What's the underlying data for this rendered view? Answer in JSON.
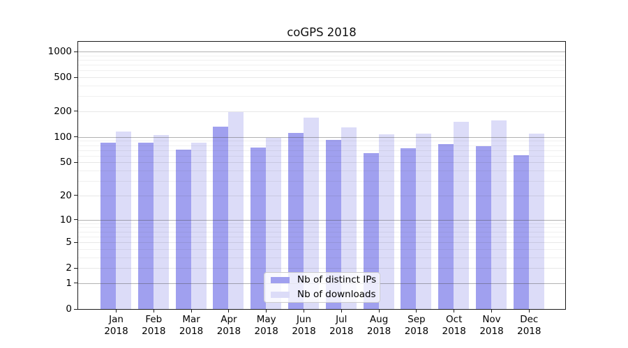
{
  "title": "coGPS 2018",
  "chart_data": {
    "type": "bar",
    "title": "coGPS 2018",
    "categories": [
      "Jan 2018",
      "Feb 2018",
      "Mar 2018",
      "Apr 2018",
      "May 2018",
      "Jun 2018",
      "Jul 2018",
      "Aug 2018",
      "Sep 2018",
      "Oct 2018",
      "Nov 2018",
      "Dec 2018"
    ],
    "series": [
      {
        "name": "Nb of distinct IPs",
        "color": "#a0a0ef",
        "values": [
          85,
          85,
          71,
          133,
          75,
          112,
          92,
          65,
          74,
          82,
          78,
          61
        ]
      },
      {
        "name": "Nb of downloads",
        "color": "#dcdcf8",
        "values": [
          116,
          105,
          85,
          195,
          98,
          170,
          130,
          107,
          110,
          152,
          156,
          109
        ]
      }
    ],
    "yscale": "log1p",
    "ylim": [
      0,
      1300
    ],
    "yticks_labeled": [
      0,
      1,
      2,
      5,
      10,
      20,
      50,
      100,
      200,
      500,
      1000
    ],
    "yticks_major": [
      1,
      10,
      100,
      1000
    ],
    "yticks_minor_unlabeled": [
      3,
      4,
      6,
      7,
      8,
      9,
      30,
      40,
      60,
      70,
      80,
      90,
      300,
      400,
      600,
      700,
      800,
      900
    ],
    "grid": true,
    "legend_position": "lower-center",
    "xlabel": "",
    "ylabel": ""
  },
  "colors": {
    "background": "#ffffff",
    "spine": "#1a1a1a",
    "grid_major": "rgba(70,70,70,0.42)",
    "grid_minor_labeled": "rgba(70,70,70,0.13)",
    "grid_minor": "rgba(70,70,70,0.08)",
    "text": "#000000",
    "legend_border": "#cccccc",
    "legend_background": "rgba(255,255,255,0.8)"
  }
}
